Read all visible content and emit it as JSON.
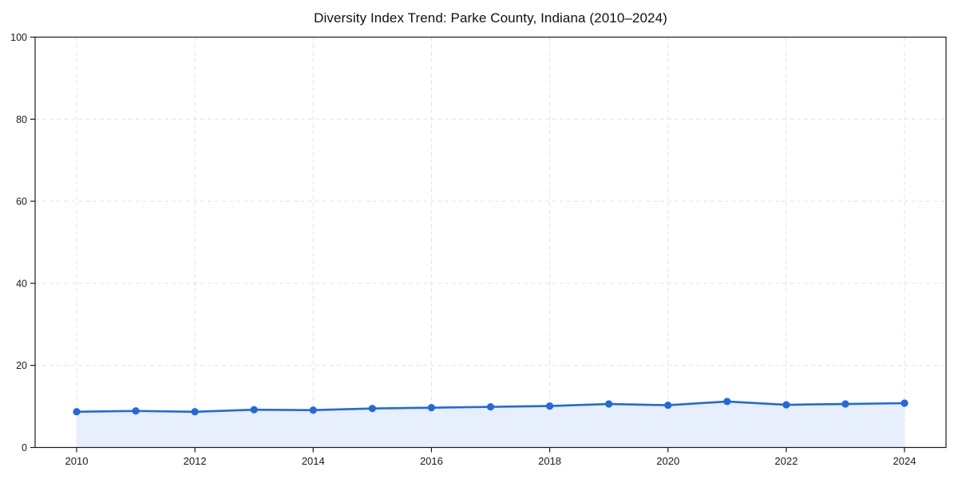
{
  "page": {
    "background": "#ffffff"
  },
  "chart_data": {
    "type": "area",
    "title": "Diversity Index Trend: Parke County, Indiana (2010–2024)",
    "xlabel": "",
    "ylabel": "",
    "x": [
      2010,
      2011,
      2012,
      2013,
      2014,
      2015,
      2016,
      2017,
      2018,
      2019,
      2020,
      2021,
      2022,
      2023,
      2024
    ],
    "values": [
      8.7,
      8.9,
      8.7,
      9.2,
      9.1,
      9.5,
      9.7,
      9.9,
      10.1,
      10.6,
      10.3,
      11.2,
      10.4,
      10.6,
      10.8
    ],
    "ylim": [
      0,
      100
    ],
    "yticks": [
      0,
      20,
      40,
      60,
      80,
      100
    ],
    "xticks": [
      2010,
      2012,
      2014,
      2016,
      2018,
      2020,
      2022,
      2024
    ],
    "grid": {
      "on": true,
      "style": "dashed",
      "color": "#e2e2e2"
    },
    "legend": {
      "visible": false
    },
    "marker": "circle",
    "colors": {
      "line": "#2268e0",
      "marker": "#2268e0",
      "fill": "#e8effc",
      "frame": "#1a1a1a",
      "tick_label": "#1a1a1a",
      "title": "#111111"
    }
  }
}
